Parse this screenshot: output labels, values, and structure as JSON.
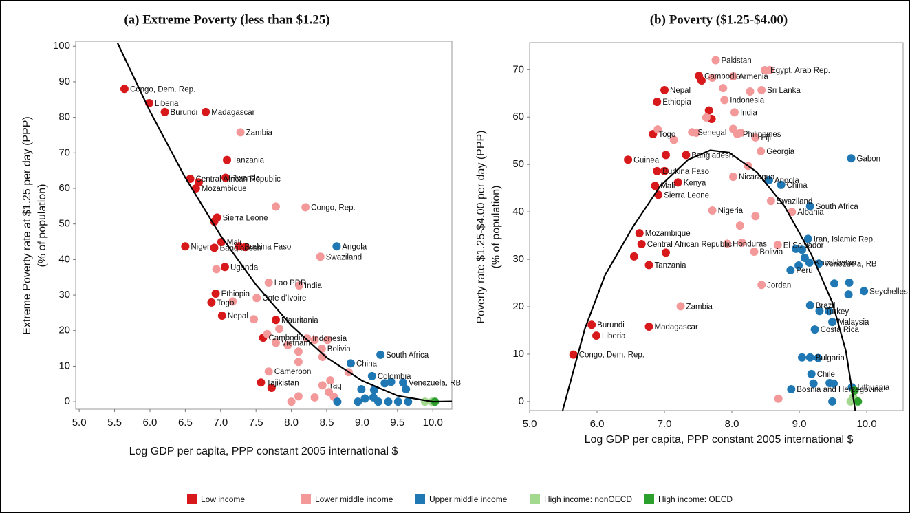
{
  "legend": {
    "items": [
      {
        "name": "Low income",
        "color": "#d7191c"
      },
      {
        "name": "Lower middle income",
        "color": "#f4999a"
      },
      {
        "name": "Upper middle income",
        "color": "#1f78b4"
      },
      {
        "name": "High income: nonOECD",
        "color": "#a3d98f"
      },
      {
        "name": "High income: OECD",
        "color": "#2ca02c"
      }
    ]
  },
  "chart_data": [
    {
      "type": "scatter",
      "title": "(a) Extreme Poverty (less than $1.25)",
      "x_label": "Log GDP per capita, PPP constant 2005 international $",
      "y_label": [
        "Extreme Poverty rate at $1.25 per day (PPP)",
        "(% of population)"
      ],
      "xlim": [
        4.95,
        10.27
      ],
      "ylim": [
        -2.1,
        101.4
      ],
      "xticks": [
        {
          "value": 5,
          "label": "5.0"
        },
        {
          "value": 5.5,
          "label": "5.5"
        },
        {
          "value": 6,
          "label": "6.0"
        },
        {
          "value": 6.5,
          "label": "6.5"
        },
        {
          "value": 7,
          "label": "7.0"
        },
        {
          "value": 7.5,
          "label": "7.5"
        },
        {
          "value": 8,
          "label": "8.0"
        },
        {
          "value": 8.5,
          "label": "8.5"
        },
        {
          "value": 9,
          "label": "9.0"
        },
        {
          "value": 9.5,
          "label": "9.5"
        },
        {
          "value": 10,
          "label": "10.0"
        }
      ],
      "yticks": [
        0,
        10,
        20,
        30,
        40,
        50,
        60,
        70,
        80,
        90,
        100
      ],
      "series": [
        {
          "x": [
            5.64,
            5.99,
            6.21,
            6.79,
            7.09,
            7.07,
            6.57,
            6.69,
            6.65,
            6.95,
            6.91,
            7.01,
            7.26,
            7.35,
            6.5,
            6.91,
            7.06,
            6.93,
            6.87,
            7.02,
            7.78,
            7.6,
            7.57,
            7.72
          ],
          "y": [
            88,
            84,
            81.5,
            81.5,
            68,
            63,
            62.7,
            61.7,
            60,
            51.8,
            50.7,
            44.9,
            43.7,
            43.5,
            43.7,
            43.3,
            37.9,
            30.4,
            27.9,
            24.2,
            23,
            18,
            5.4,
            3.9
          ],
          "labels": [
            "Congo, Dem. Rep.",
            "Liberia",
            "Burundi",
            "Madagascar",
            "Tanzania",
            "Rwanda",
            "Central African Republic",
            null,
            "Mozambique",
            "Sierra Leone",
            null,
            "Mali",
            "Burkina Faso",
            null,
            "Niger",
            "Bangladesh",
            "Uganda",
            "Ethiopia",
            "Togo",
            "Nepal",
            "Mauritania",
            "Cambodia",
            "Tajikistan",
            null
          ]
        },
        {
          "x": [
            7.28,
            8.2,
            7.78,
            8.41,
            6.94,
            7.68,
            8.11,
            7.17,
            7.51,
            7.47,
            7.83,
            7.66,
            8.22,
            8.33,
            8.51,
            7.78,
            7.95,
            8.1,
            8.43,
            8.44,
            8.1,
            7.68,
            8.81,
            8.44,
            8.55,
            8.53,
            8.6,
            8.1,
            8.33,
            8.0
          ],
          "y": [
            75.8,
            54.7,
            54.9,
            40.8,
            37.3,
            33.5,
            32.7,
            28.2,
            29.2,
            23.2,
            20.5,
            19,
            17.8,
            17.4,
            17.4,
            16.6,
            15.9,
            14.1,
            14.9,
            12.6,
            11.2,
            8.5,
            8.3,
            4.6,
            6,
            2.7,
            1.4,
            1.5,
            1.2,
            0
          ],
          "labels": [
            "Zambia",
            "Congo, Rep.",
            null,
            "Swaziland",
            null,
            "Lao PDR",
            "India",
            null,
            "Cote d'Ivoire",
            null,
            null,
            null,
            "Indonesia",
            null,
            null,
            "Vietnam",
            null,
            null,
            "Bolivia",
            null,
            null,
            "Cameroon",
            null,
            "Iraq",
            null,
            null,
            null,
            null,
            null,
            null
          ]
        },
        {
          "x": [
            8.64,
            9.26,
            8.84,
            9.14,
            8.99,
            9.16,
            9.32,
            9.41,
            9.58,
            9.62,
            9.17,
            9.04,
            9.23,
            9.37,
            9.51,
            9.65,
            8.65,
            8.94
          ],
          "y": [
            43.7,
            13.2,
            10.8,
            7.2,
            3.5,
            1.2,
            5.2,
            5.6,
            5.4,
            3.5,
            3.3,
            0.9,
            0,
            0,
            0,
            0,
            0,
            0
          ],
          "labels": [
            "Angola",
            "South Africa",
            "China",
            "Colombia",
            null,
            null,
            null,
            null,
            "Venezuela, RB",
            null,
            null,
            null,
            null,
            null,
            null,
            null,
            null,
            null
          ]
        },
        {
          "x": [
            9.89,
            9.99
          ],
          "y": [
            0,
            0
          ]
        },
        {
          "x": [
            10.03
          ],
          "y": [
            0
          ]
        }
      ],
      "fit": {
        "x": [
          5.54,
          6,
          6.5,
          7,
          7.5,
          8,
          8.5,
          9,
          9.5,
          10,
          10.27
        ],
        "y": [
          101,
          81.7,
          63,
          46.7,
          32.9,
          21.4,
          12.4,
          5.9,
          1.7,
          0,
          0.1
        ]
      }
    },
    {
      "type": "scatter",
      "title": "(b) Poverty ($1.25-$4.00)",
      "x_label": "Log GDP per capita, PPP constant 2005 international $",
      "y_label": [
        "Poverty rate $1.25-$4.00 per day (PPP)",
        "(% of population)"
      ],
      "xlim": [
        5.0,
        10.54
      ],
      "ylim": [
        -1.9,
        75.7
      ],
      "xticks": [
        {
          "value": 5,
          "label": "5.0"
        },
        {
          "value": 6,
          "label": "6.0"
        },
        {
          "value": 7,
          "label": "7.0"
        },
        {
          "value": 8,
          "label": "8.0"
        },
        {
          "value": 9,
          "label": "9.0"
        },
        {
          "value": 10,
          "label": "10.0"
        }
      ],
      "yticks": [
        0,
        10,
        20,
        30,
        40,
        50,
        60,
        70
      ],
      "series": [
        {
          "x": [
            5.65,
            5.92,
            5.99,
            6.77,
            6.77,
            7.02,
            6.63,
            6.66,
            6.55,
            6.91,
            6.86,
            7.2,
            6.46,
            6.89,
            7.0,
            6.83,
            7.32,
            7.02,
            6.89,
            7.51,
            7.55,
            7.0,
            7.66,
            7.7
          ],
          "y": [
            9.9,
            16.2,
            13.9,
            15.8,
            28.8,
            31.4,
            35.5,
            33.2,
            30.6,
            43.6,
            45.5,
            46.2,
            51,
            48.6,
            48.6,
            56.4,
            52,
            52,
            63.2,
            68.7,
            67.7,
            65.7,
            61.4,
            59.6
          ],
          "labels": [
            "Congo, Dem. Rep.",
            "Burundi",
            "Liberia",
            "Madagascar",
            "Tanzania",
            null,
            "Mozambique",
            "Central African Republic",
            null,
            "Sierra Leone",
            "Mali",
            "Kenya",
            "Guinea",
            "Burkina Faso",
            null,
            "Togo",
            "Bangladesh",
            null,
            "Ethiopia",
            "Cambodia",
            null,
            "Nepal",
            null,
            null
          ]
        },
        {
          "x": [
            7.76,
            8.49,
            8.56,
            8.02,
            7.71,
            8.44,
            8.27,
            7.89,
            7.87,
            8.04,
            8.08,
            8.02,
            8.35,
            8.13,
            7.62,
            7.41,
            7.47,
            6.9,
            7.14,
            8.43,
            8.24,
            8.02,
            8.58,
            7.71,
            8.89,
            8.35,
            8.12,
            8.68,
            7.93,
            8.15,
            8.33,
            7.24,
            8.44,
            8.69
          ],
          "y": [
            72,
            69.9,
            69.9,
            68.6,
            68.3,
            65.7,
            65.4,
            63.6,
            66.1,
            61,
            56.4,
            57.5,
            55.7,
            56.7,
            59.9,
            56.8,
            56.7,
            57.4,
            55.2,
            52.8,
            49.7,
            47.4,
            42.3,
            40.3,
            40,
            39.1,
            37.1,
            33,
            33.3,
            33.5,
            31.6,
            20.1,
            24.6,
            0.6
          ],
          "labels": [
            "Pakistan",
            "Egypt, Arab Rep.",
            null,
            "Armenia",
            null,
            "Sri Lanka",
            null,
            "Indonesia",
            null,
            "India",
            "Philippines",
            null,
            "Fiji",
            null,
            null,
            "Senegal",
            null,
            null,
            null,
            "Georgia",
            null,
            "Nicaragua",
            "Swaziland",
            "Nigeria",
            "Albania",
            null,
            null,
            "El Salvador",
            "Honduras",
            null,
            "Bolivia",
            "Zambia",
            "Jordan",
            null
          ]
        },
        {
          "x": [
            9.77,
            8.55,
            8.73,
            9.16,
            9.13,
            9.29,
            8.95,
            9.04,
            9.08,
            9.15,
            8.99,
            8.87,
            9.52,
            9.74,
            9.73,
            9.96,
            9.16,
            9.3,
            9.44,
            9.49,
            9.23,
            9.04,
            9.16,
            9.28,
            9.18,
            9.21,
            9.45,
            9.51,
            8.88,
            9.49,
            9.78
          ],
          "y": [
            51.3,
            46.7,
            45.7,
            41.2,
            34.3,
            29.1,
            32.2,
            32,
            30.3,
            29.3,
            28.7,
            27.7,
            24.9,
            25.1,
            22.6,
            23.3,
            20.3,
            19.1,
            19.1,
            16.8,
            15.2,
            9.3,
            9.3,
            9.2,
            5.8,
            3.8,
            3.9,
            3.8,
            2.6,
            0,
            3
          ],
          "labels": [
            "Gabon",
            "Angola",
            "China",
            "South Africa",
            "Iran, Islamic Rep.",
            "Venezuela, RB",
            null,
            null,
            null,
            "Kazakhstan",
            null,
            "Peru",
            null,
            null,
            null,
            "Seychelles",
            "Brazil",
            "Turkey",
            null,
            "Malaysia",
            "Costa Rica",
            null,
            "Bulgaria",
            null,
            "Chile",
            null,
            null,
            null,
            "Bosnia and Herzegovina",
            null,
            "Lithuania"
          ]
        },
        {
          "x": [
            9.8,
            9.76
          ],
          "y": [
            0.9,
            0
          ]
        },
        {
          "x": [
            9.87,
            9.82
          ],
          "y": [
            0,
            2.3
          ]
        }
      ],
      "fit": {
        "x": [
          5.49,
          5.82,
          6.12,
          6.53,
          6.94,
          7.35,
          7.68,
          7.96,
          8.37,
          8.78,
          9.18,
          9.49,
          9.69,
          9.83
        ],
        "y": [
          -1.9,
          15.4,
          26.7,
          36.8,
          45.5,
          51,
          53,
          52.5,
          48.4,
          41.2,
          31,
          20.9,
          10.7,
          -1.9
        ]
      }
    }
  ]
}
